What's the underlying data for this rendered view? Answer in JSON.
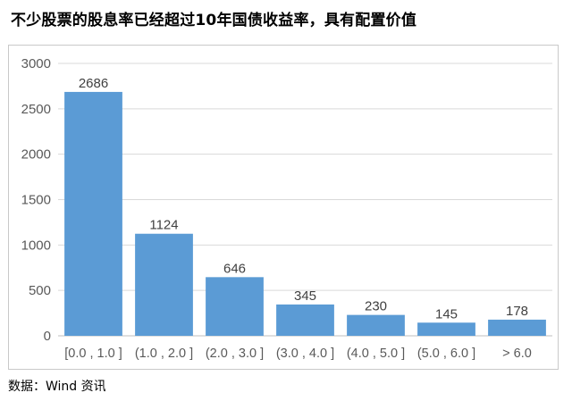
{
  "title": "不少股票的股息率已经超过10年国债收益率，具有配置价值",
  "source": "数据：Wind 资讯",
  "colors": {
    "bar": "#5B9BD5",
    "grid": "#D9D9D9",
    "axis": "#BFBFBF"
  },
  "chart_data": {
    "type": "bar",
    "categories": [
      "[0.0 , 1.0 ]",
      "(1.0 , 2.0 ]",
      "(2.0 , 3.0 ]",
      "(3.0 , 4.0 ]",
      "(4.0 , 5.0 ]",
      "(5.0 , 6.0 ]",
      "> 6.0"
    ],
    "values": [
      2686,
      1124,
      646,
      345,
      230,
      145,
      178
    ],
    "ylim": [
      0,
      3000
    ],
    "yticks": [
      "0",
      "500",
      "1000",
      "1500",
      "2000",
      "2500",
      "3000"
    ],
    "grid": true,
    "legend": "none"
  }
}
